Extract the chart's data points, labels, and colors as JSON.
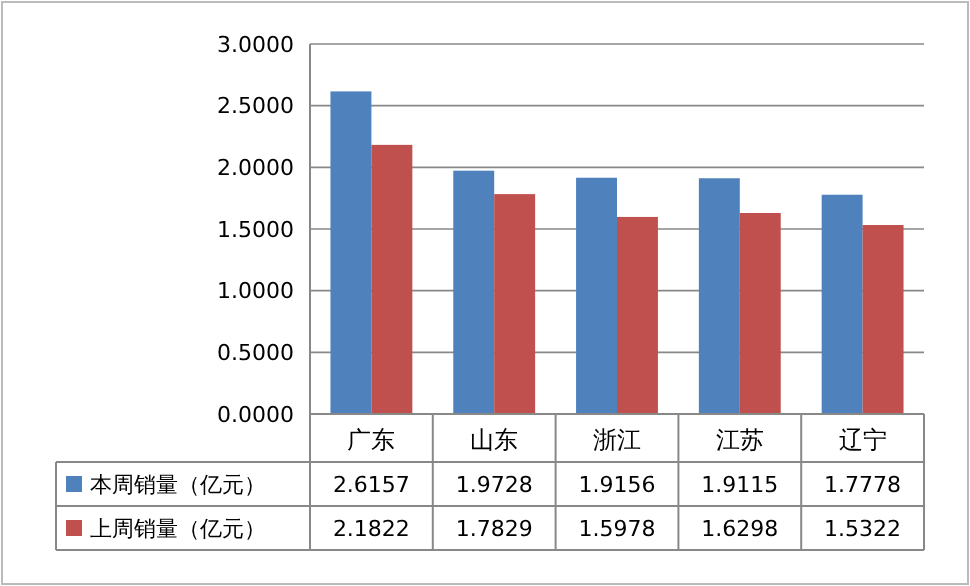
{
  "chart_data": {
    "type": "bar",
    "categories": [
      "广东",
      "山东",
      "浙江",
      "江苏",
      "辽宁"
    ],
    "series": [
      {
        "name": "本周销量（亿元）",
        "color": "#4f81bd",
        "values": [
          2.6157,
          1.9728,
          1.9156,
          1.9115,
          1.7778
        ]
      },
      {
        "name": "上周销量（亿元）",
        "color": "#c0504d",
        "values": [
          2.1822,
          1.7829,
          1.5978,
          1.6298,
          1.5322
        ]
      }
    ],
    "ylim": [
      0,
      3
    ],
    "yticks": [
      {
        "value": 0,
        "label": "0.0000"
      },
      {
        "value": 0.5,
        "label": "0.5000"
      },
      {
        "value": 1,
        "label": "1.0000"
      },
      {
        "value": 1.5,
        "label": "1.5000"
      },
      {
        "value": 2,
        "label": "2.0000"
      },
      {
        "value": 2.5,
        "label": "2.5000"
      },
      {
        "value": 3,
        "label": "3.0000"
      }
    ],
    "grid": true,
    "data_labels": true,
    "legend": "bottom"
  }
}
